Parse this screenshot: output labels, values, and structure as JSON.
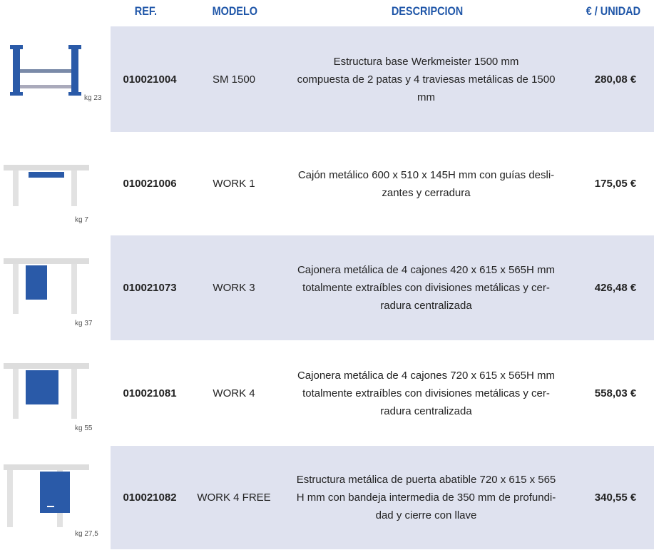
{
  "header": {
    "ref": "REF.",
    "modelo": "MODELO",
    "descripcion": "DESCRIPCION",
    "precio": "€ / UNIDAD"
  },
  "table": {
    "rows": [
      {
        "weight": "kg 23",
        "ref": "010021004",
        "modelo": "SM 1500",
        "descripcion": [
          "Estructura base Werkmeister 1500 mm",
          "compuesta de 2 patas y 4 traviesas metálicas de 1500",
          "mm"
        ],
        "precio": "280,08 €"
      },
      {
        "weight": "kg 7",
        "ref": "010021006",
        "modelo": "WORK 1",
        "descripcion": [
          "Cajón metálico 600 x 510 x 145H mm con guías desli-",
          "zantes y cerradura"
        ],
        "precio": "175,05 €"
      },
      {
        "weight": "kg 37",
        "ref": "010021073",
        "modelo": "WORK 3",
        "descripcion": [
          "Cajonera metálica de 4 cajones 420 x 615 x 565H mm",
          "totalmente extraíbles con divisiones metálicas y cer-",
          "radura centralizada"
        ],
        "precio": "426,48 €"
      },
      {
        "weight": "kg 55",
        "ref": "010021081",
        "modelo": "WORK 4",
        "descripcion": [
          "Cajonera metálica de 4 cajones 720 x 615 x 565H mm",
          "totalmente extraíbles con divisiones metálicas y cer-",
          "radura centralizada"
        ],
        "precio": "558,03 €"
      },
      {
        "weight": "kg 27,5",
        "ref": "010021082",
        "modelo": "WORK 4 FREE",
        "descripcion": [
          "Estructura metálica de puerta abatible 720 x 615 x 565",
          "H mm con bandeja intermedia de 350 mm de profundi-",
          "dad y cierre con llave"
        ],
        "precio": "340,55 €"
      }
    ]
  }
}
